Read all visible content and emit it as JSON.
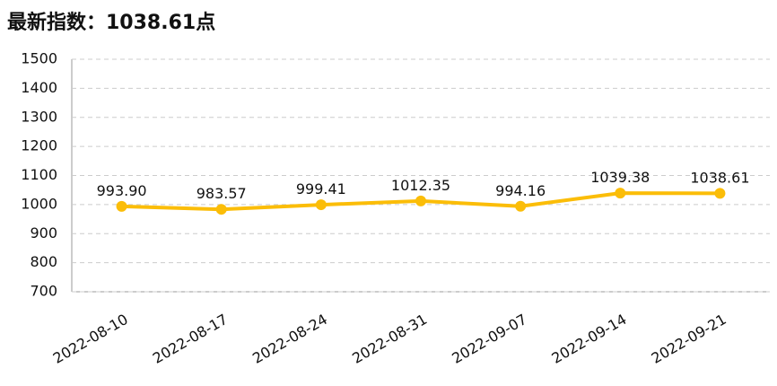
{
  "chart_data": {
    "type": "line",
    "title": "最新指数：1038.61点",
    "categories": [
      "2022-08-10",
      "2022-08-17",
      "2022-08-24",
      "2022-08-31",
      "2022-09-07",
      "2022-09-14",
      "2022-09-21"
    ],
    "values": [
      993.9,
      983.57,
      999.41,
      1012.35,
      994.16,
      1039.38,
      1038.61
    ],
    "value_labels": [
      "993.90",
      "983.57",
      "999.41",
      "1012.35",
      "994.16",
      "1039.38",
      "1038.61"
    ],
    "color": "#fbbd08",
    "ylim": [
      700,
      1500
    ],
    "yticks": [
      700,
      800,
      900,
      1000,
      1100,
      1200,
      1300,
      1400,
      1500
    ],
    "grid": true
  }
}
